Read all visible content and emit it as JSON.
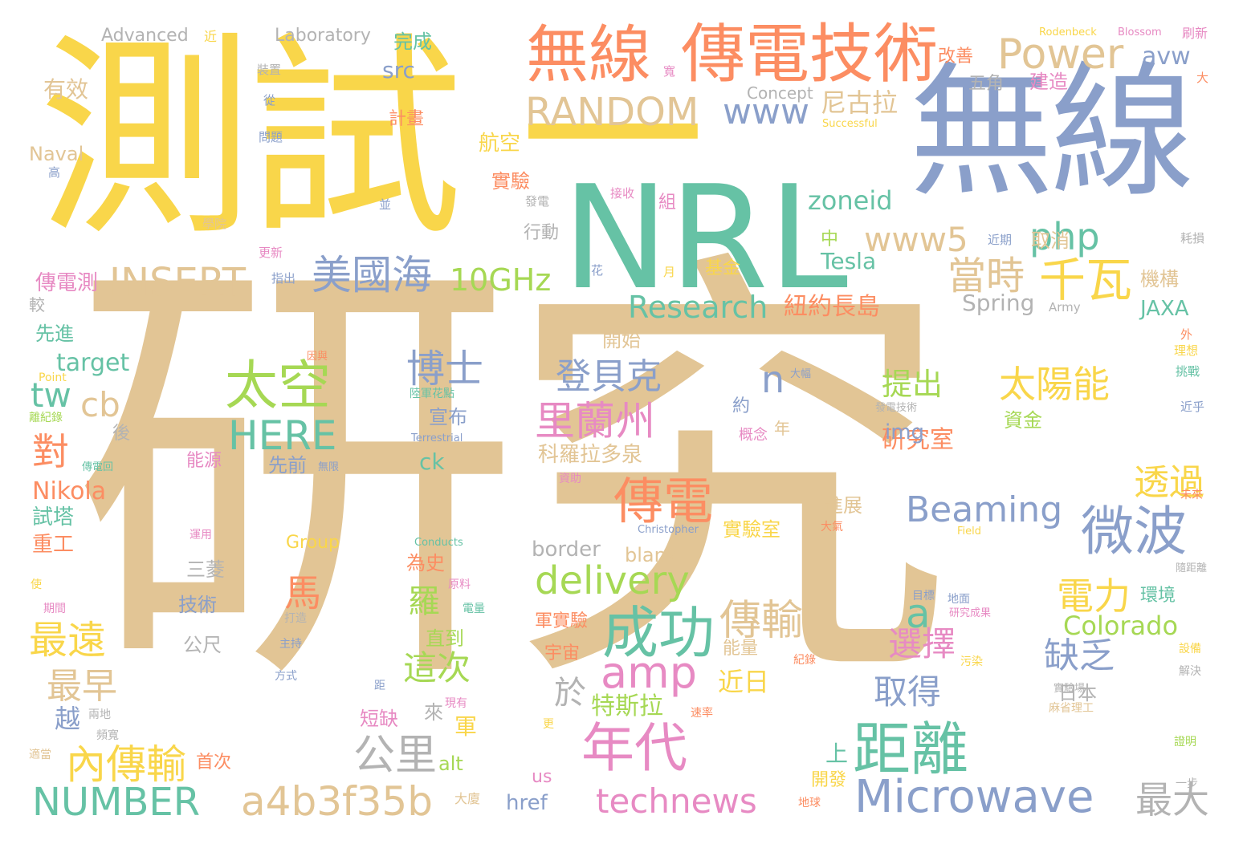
{
  "palette": [
    "#f9d64a",
    "#e2c595",
    "#8a9fca",
    "#66c2a5",
    "#fc8d62",
    "#e78ac3",
    "#a6d854",
    "#b3b3b3"
  ],
  "words": [
    {
      "text": "研究",
      "color": "#e2c595"
    },
    {
      "text": "測試",
      "color": "#f9d64a"
    },
    {
      "text": "無線",
      "color": "#8a9fca"
    },
    {
      "text": "一",
      "color": "#f9d64a"
    },
    {
      "text": "NRL",
      "color": "#66c2a5"
    },
    {
      "text": "傳電技術",
      "color": "#fc8d62"
    },
    {
      "text": "無線",
      "color": "#fc8d62"
    },
    {
      "text": "Power",
      "color": "#e2c595"
    },
    {
      "text": "RANDOM",
      "color": "#e2c595"
    },
    {
      "text": "www",
      "color": "#8a9fca"
    },
    {
      "text": "INSERT",
      "color": "#e2c595"
    },
    {
      "text": "美國海",
      "color": "#8a9fca"
    },
    {
      "text": "10GHz",
      "color": "#a6d854"
    },
    {
      "text": "www5",
      "color": "#e2c595"
    },
    {
      "text": "php",
      "color": "#66c2a5"
    },
    {
      "text": "千瓦",
      "color": "#f9d64a"
    },
    {
      "text": "當時",
      "color": "#e2c595"
    },
    {
      "text": "Research",
      "color": "#66c2a5"
    },
    {
      "text": "太空",
      "color": "#a6d854"
    },
    {
      "text": "HERE",
      "color": "#66c2a5"
    },
    {
      "text": "博士",
      "color": "#8a9fca"
    },
    {
      "text": "cb",
      "color": "#e2c595"
    },
    {
      "text": "tw",
      "color": "#66c2a5"
    },
    {
      "text": "對",
      "color": "#fc8d62"
    },
    {
      "text": "登貝克",
      "color": "#8a9fca"
    },
    {
      "text": "里蘭州",
      "color": "#e78ac3"
    },
    {
      "text": "n",
      "color": "#8a9fca"
    },
    {
      "text": "太陽能",
      "color": "#f9d64a"
    },
    {
      "text": "提出",
      "color": "#a6d854"
    },
    {
      "text": "傳電",
      "color": "#fc8d62"
    },
    {
      "text": "Beaming",
      "color": "#8a9fca"
    },
    {
      "text": "微波",
      "color": "#8a9fca"
    },
    {
      "text": "delivery",
      "color": "#a6d854"
    },
    {
      "text": "成功",
      "color": "#66c2a5"
    },
    {
      "text": "amp",
      "color": "#e78ac3"
    },
    {
      "text": "a",
      "color": "#66c2a5"
    },
    {
      "text": "傳輸",
      "color": "#e2c595"
    },
    {
      "text": "電力",
      "color": "#f9d64a"
    },
    {
      "text": "選擇",
      "color": "#e78ac3"
    },
    {
      "text": "缺乏",
      "color": "#8a9fca"
    },
    {
      "text": "馬",
      "color": "#fc8d62"
    },
    {
      "text": "最遠",
      "color": "#f9d64a"
    },
    {
      "text": "最早",
      "color": "#e2c595"
    },
    {
      "text": "這次",
      "color": "#a6d854"
    },
    {
      "text": "取得",
      "color": "#8a9fca"
    },
    {
      "text": "於",
      "color": "#b3b3b3"
    },
    {
      "text": "內傳輸",
      "color": "#f9d64a"
    },
    {
      "text": "公里",
      "color": "#b3b3b3"
    },
    {
      "text": "年代",
      "color": "#e78ac3"
    },
    {
      "text": "距離",
      "color": "#66c2a5"
    },
    {
      "text": "NUMBER",
      "color": "#66c2a5"
    },
    {
      "text": "a4b3f35b",
      "color": "#e2c595"
    },
    {
      "text": "technews",
      "color": "#e78ac3"
    },
    {
      "text": "Microwave",
      "color": "#8a9fca"
    },
    {
      "text": "最大",
      "color": "#b3b3b3"
    },
    {
      "text": "透過",
      "color": "#f9d64a"
    },
    {
      "text": "Colorado",
      "color": "#a6d854"
    },
    {
      "text": "研究室",
      "color": "#fc8d62"
    },
    {
      "text": "特斯拉",
      "color": "#a6d854"
    },
    {
      "text": "近日",
      "color": "#f9d64a"
    },
    {
      "text": "Nikola",
      "color": "#fc8d62"
    },
    {
      "text": "target",
      "color": "#66c2a5"
    },
    {
      "text": "紐約長島",
      "color": "#fc8d62"
    },
    {
      "text": "Spring",
      "color": "#b3b3b3"
    },
    {
      "text": "JAXA",
      "color": "#66c2a5"
    },
    {
      "text": "Tesla",
      "color": "#66c2a5"
    },
    {
      "text": "zoneid",
      "color": "#66c2a5"
    },
    {
      "text": "尼古拉",
      "color": "#e2c595"
    },
    {
      "text": "avw",
      "color": "#8a9fca"
    },
    {
      "text": "Advanced",
      "color": "#b3b3b3"
    },
    {
      "text": "Laboratory",
      "color": "#b3b3b3"
    },
    {
      "text": "完成",
      "color": "#66c2a5"
    },
    {
      "text": "src",
      "color": "#8a9fca"
    },
    {
      "text": "有效",
      "color": "#e2c595"
    },
    {
      "text": "Naval",
      "color": "#e2c595"
    },
    {
      "text": "航空",
      "color": "#f9d64a"
    },
    {
      "text": "實驗",
      "color": "#fc8d62"
    },
    {
      "text": "改善",
      "color": "#fc8d62"
    },
    {
      "text": "建造",
      "color": "#e78ac3"
    },
    {
      "text": "五角",
      "color": "#b3b3b3"
    },
    {
      "text": "計畫",
      "color": "#fc8d62"
    },
    {
      "text": "Concept",
      "color": "#b3b3b3"
    },
    {
      "text": "取消",
      "color": "#e2c595"
    },
    {
      "text": "機構",
      "color": "#e2c595"
    },
    {
      "text": "傳電測",
      "color": "#e78ac3"
    },
    {
      "text": "先進",
      "color": "#66c2a5"
    },
    {
      "text": "試塔",
      "color": "#66c2a5"
    },
    {
      "text": "重工",
      "color": "#fc8d62"
    },
    {
      "text": "越",
      "color": "#8a9fca"
    },
    {
      "text": "能源",
      "color": "#e78ac3"
    },
    {
      "text": "先前",
      "color": "#8a9fca"
    },
    {
      "text": "宣布",
      "color": "#8a9fca"
    },
    {
      "text": "ck",
      "color": "#66c2a5"
    },
    {
      "text": "img",
      "color": "#8a9fca"
    },
    {
      "text": "資金",
      "color": "#a6d854"
    },
    {
      "text": "科羅拉多泉",
      "color": "#e2c595"
    },
    {
      "text": "開始",
      "color": "#e2c595"
    },
    {
      "text": "實驗室",
      "color": "#f9d64a"
    },
    {
      "text": "進展",
      "color": "#e2c595"
    },
    {
      "text": "border",
      "color": "#b3b3b3"
    },
    {
      "text": "blank",
      "color": "#e2c595"
    },
    {
      "text": "為史",
      "color": "#fc8d62"
    },
    {
      "text": "羅",
      "color": "#a6d854"
    },
    {
      "text": "直到",
      "color": "#a6d854"
    },
    {
      "text": "三菱",
      "color": "#b3b3b3"
    },
    {
      "text": "技術",
      "color": "#8a9fca"
    },
    {
      "text": "公尺",
      "color": "#b3b3b3"
    },
    {
      "text": "宇宙",
      "color": "#fc8d62"
    },
    {
      "text": "能量",
      "color": "#e2c595"
    },
    {
      "text": "環境",
      "color": "#66c2a5"
    },
    {
      "text": "日本",
      "color": "#b3b3b3"
    },
    {
      "text": "軍實驗",
      "color": "#fc8d62"
    },
    {
      "text": "來",
      "color": "#b3b3b3"
    },
    {
      "text": "短缺",
      "color": "#e78ac3"
    },
    {
      "text": "軍",
      "color": "#f9d64a"
    },
    {
      "text": "alt",
      "color": "#a6d854"
    },
    {
      "text": "首次",
      "color": "#fc8d62"
    },
    {
      "text": "上",
      "color": "#66c2a5"
    },
    {
      "text": "開發",
      "color": "#f9d64a"
    },
    {
      "text": "href",
      "color": "#8a9fca"
    },
    {
      "text": "us",
      "color": "#e78ac3"
    },
    {
      "text": "中",
      "color": "#a6d854"
    },
    {
      "text": "行動",
      "color": "#b3b3b3"
    },
    {
      "text": "基金",
      "color": "#f9d64a"
    },
    {
      "text": "組",
      "color": "#e78ac3"
    },
    {
      "text": "約",
      "color": "#8a9fca"
    },
    {
      "text": "年",
      "color": "#e2c595"
    },
    {
      "text": "概念",
      "color": "#e78ac3"
    },
    {
      "text": "後",
      "color": "#b3b3b3"
    },
    {
      "text": "較",
      "color": "#b3b3b3"
    },
    {
      "text": "Group",
      "color": "#f9d64a"
    },
    {
      "text": "近",
      "color": "#f9d64a"
    },
    {
      "text": "Rodenbeck",
      "color": "#f9d64a"
    },
    {
      "text": "Blossom",
      "color": "#e78ac3"
    },
    {
      "text": "刷新",
      "color": "#e78ac3"
    },
    {
      "text": "裝置",
      "color": "#b3b3b3"
    },
    {
      "text": "從",
      "color": "#8a9fca"
    },
    {
      "text": "問題",
      "color": "#8a9fca"
    },
    {
      "text": "寬",
      "color": "#e78ac3"
    },
    {
      "text": "Successful",
      "color": "#f9d64a"
    },
    {
      "text": "大",
      "color": "#fc8d62"
    },
    {
      "text": "高",
      "color": "#8a9fca"
    },
    {
      "text": "發電",
      "color": "#b3b3b3"
    },
    {
      "text": "並",
      "color": "#8a9fca"
    },
    {
      "text": "接收",
      "color": "#e78ac3"
    },
    {
      "text": "學院",
      "color": "#e2c595"
    },
    {
      "text": "更新",
      "color": "#e78ac3"
    },
    {
      "text": "指出",
      "color": "#8a9fca"
    },
    {
      "text": "近期",
      "color": "#8a9fca"
    },
    {
      "text": "耗損",
      "color": "#b3b3b3"
    },
    {
      "text": "花",
      "color": "#8a9fca"
    },
    {
      "text": "月",
      "color": "#f9d64a"
    },
    {
      "text": "Army",
      "color": "#b3b3b3"
    },
    {
      "text": "外",
      "color": "#fc8d62"
    },
    {
      "text": "理想",
      "color": "#f9d64a"
    },
    {
      "text": "挑戰",
      "color": "#66c2a5"
    },
    {
      "text": "因與",
      "color": "#fc8d62"
    },
    {
      "text": "Point",
      "color": "#f9d64a"
    },
    {
      "text": "陸軍花點",
      "color": "#66c2a5"
    },
    {
      "text": "離紀錄",
      "color": "#a6d854"
    },
    {
      "text": "大幅",
      "color": "#8a9fca"
    },
    {
      "text": "發電技術",
      "color": "#b3b3b3"
    },
    {
      "text": "近乎",
      "color": "#8a9fca"
    },
    {
      "text": "Terrestrial",
      "color": "#8a9fca"
    },
    {
      "text": "傳電回",
      "color": "#66c2a5"
    },
    {
      "text": "無限",
      "color": "#8a9fca"
    },
    {
      "text": "資助",
      "color": "#e78ac3"
    },
    {
      "text": "未來",
      "color": "#fc8d62"
    },
    {
      "text": "運用",
      "color": "#e78ac3"
    },
    {
      "text": "Christopher",
      "color": "#8a9fca"
    },
    {
      "text": "大氣",
      "color": "#fc8d62"
    },
    {
      "text": "Field",
      "color": "#f9d64a"
    },
    {
      "text": "Conducts",
      "color": "#66c2a5"
    },
    {
      "text": "隨距離",
      "color": "#b3b3b3"
    },
    {
      "text": "使",
      "color": "#f9d64a"
    },
    {
      "text": "期間",
      "color": "#e78ac3"
    },
    {
      "text": "原料",
      "color": "#e78ac3"
    },
    {
      "text": "電量",
      "color": "#66c2a5"
    },
    {
      "text": "打造",
      "color": "#b3b3b3"
    },
    {
      "text": "目標",
      "color": "#8a9fca"
    },
    {
      "text": "地面",
      "color": "#8a9fca"
    },
    {
      "text": "研究成果",
      "color": "#e78ac3"
    },
    {
      "text": "主持",
      "color": "#8a9fca"
    },
    {
      "text": "方式",
      "color": "#8a9fca"
    },
    {
      "text": "紀錄",
      "color": "#fc8d62"
    },
    {
      "text": "污染",
      "color": "#f9d64a"
    },
    {
      "text": "設備",
      "color": "#f9d64a"
    },
    {
      "text": "解決",
      "color": "#b3b3b3"
    },
    {
      "text": "距",
      "color": "#8a9fca"
    },
    {
      "text": "兩地",
      "color": "#b3b3b3"
    },
    {
      "text": "頻寬",
      "color": "#b3b3b3"
    },
    {
      "text": "現有",
      "color": "#e78ac3"
    },
    {
      "text": "速率",
      "color": "#fc8d62"
    },
    {
      "text": "實驗場",
      "color": "#b3b3b3"
    },
    {
      "text": "麻省理工",
      "color": "#e2c595"
    },
    {
      "text": "更",
      "color": "#f9d64a"
    },
    {
      "text": "證明",
      "color": "#a6d854"
    },
    {
      "text": "適當",
      "color": "#e2c595"
    },
    {
      "text": "一步",
      "color": "#b3b3b3"
    },
    {
      "text": "大廈",
      "color": "#e2c595"
    },
    {
      "text": "地球",
      "color": "#fc8d62"
    }
  ]
}
